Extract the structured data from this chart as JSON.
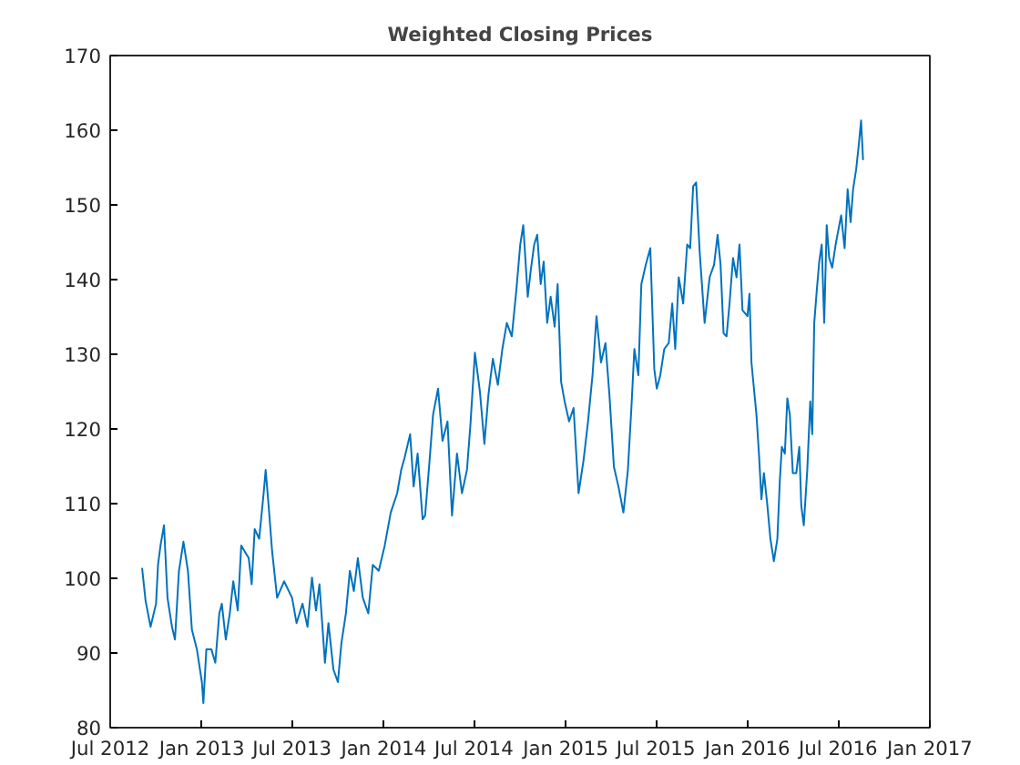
{
  "chart_data": {
    "type": "line",
    "title": "Weighted Closing Prices",
    "x": [
      "2012-09-03",
      "2012-09-10",
      "2012-09-20",
      "2012-10-01",
      "2012-10-05",
      "2012-10-10",
      "2012-10-17",
      "2012-10-24",
      "2012-11-02",
      "2012-11-08",
      "2012-11-16",
      "2012-11-25",
      "2012-12-04",
      "2012-12-12",
      "2012-12-22",
      "2013-01-01",
      "2013-01-04",
      "2013-01-10",
      "2013-01-20",
      "2013-01-28",
      "2013-02-05",
      "2013-02-10",
      "2013-02-18",
      "2013-02-26",
      "2013-03-05",
      "2013-03-14",
      "2013-03-21",
      "2013-03-28",
      "2013-04-05",
      "2013-04-11",
      "2013-04-17",
      "2013-04-26",
      "2013-05-05",
      "2013-05-09",
      "2013-05-15",
      "2013-05-22",
      "2013-06-01",
      "2013-06-15",
      "2013-07-01",
      "2013-07-10",
      "2013-07-22",
      "2013-08-01",
      "2013-08-10",
      "2013-08-18",
      "2013-08-25",
      "2013-09-05",
      "2013-09-12",
      "2013-09-22",
      "2013-10-01",
      "2013-10-08",
      "2013-10-17",
      "2013-10-25",
      "2013-11-02",
      "2013-11-10",
      "2013-11-20",
      "2013-12-01",
      "2013-12-10",
      "2013-12-22",
      "2014-01-03",
      "2014-01-15",
      "2014-01-28",
      "2014-02-05",
      "2014-02-12",
      "2014-02-23",
      "2014-03-02",
      "2014-03-10",
      "2014-03-20",
      "2014-03-25",
      "2014-04-03",
      "2014-04-10",
      "2014-04-20",
      "2014-04-29",
      "2014-05-09",
      "2014-05-18",
      "2014-05-28",
      "2014-06-07",
      "2014-06-17",
      "2014-06-24",
      "2014-07-03",
      "2014-07-13",
      "2014-07-22",
      "2014-07-30",
      "2014-08-08",
      "2014-08-18",
      "2014-08-27",
      "2014-09-05",
      "2014-09-15",
      "2014-09-24",
      "2014-10-02",
      "2014-10-08",
      "2014-10-17",
      "2014-10-23",
      "2014-10-30",
      "2014-11-05",
      "2014-11-12",
      "2014-11-18",
      "2014-11-25",
      "2014-12-02",
      "2014-12-10",
      "2014-12-16",
      "2014-12-23",
      "2014-12-30",
      "2015-01-08",
      "2015-01-17",
      "2015-01-27",
      "2015-02-06",
      "2015-02-15",
      "2015-02-24",
      "2015-03-04",
      "2015-03-13",
      "2015-03-22",
      "2015-03-30",
      "2015-04-08",
      "2015-04-17",
      "2015-04-27",
      "2015-05-06",
      "2015-05-13",
      "2015-05-19",
      "2015-05-27",
      "2015-06-02",
      "2015-06-11",
      "2015-06-20",
      "2015-06-28",
      "2015-07-03",
      "2015-07-10",
      "2015-07-18",
      "2015-07-27",
      "2015-08-03",
      "2015-08-09",
      "2015-08-16",
      "2015-08-25",
      "2015-09-02",
      "2015-09-08",
      "2015-09-14",
      "2015-09-20",
      "2015-09-27",
      "2015-10-07",
      "2015-10-17",
      "2015-10-26",
      "2015-11-02",
      "2015-11-08",
      "2015-11-14",
      "2015-11-20",
      "2015-11-26",
      "2015-12-03",
      "2015-12-10",
      "2015-12-16",
      "2015-12-22",
      "2016-01-01",
      "2016-01-05",
      "2016-01-09",
      "2016-01-14",
      "2016-01-19",
      "2016-01-24",
      "2016-01-29",
      "2016-02-03",
      "2016-02-10",
      "2016-02-16",
      "2016-02-23",
      "2016-03-01",
      "2016-03-06",
      "2016-03-10",
      "2016-03-16",
      "2016-03-21",
      "2016-03-26",
      "2016-04-01",
      "2016-04-08",
      "2016-04-14",
      "2016-04-18",
      "2016-04-23",
      "2016-04-30",
      "2016-05-06",
      "2016-05-10",
      "2016-05-14",
      "2016-05-19",
      "2016-05-24",
      "2016-05-29",
      "2016-06-03",
      "2016-06-08",
      "2016-06-13",
      "2016-06-19",
      "2016-06-26",
      "2016-07-01",
      "2016-07-07",
      "2016-07-14",
      "2016-07-20",
      "2016-07-26",
      "2016-07-31",
      "2016-08-06",
      "2016-08-11",
      "2016-08-16",
      "2016-08-20"
    ],
    "series": [
      {
        "color": "#0072bd",
        "values": [
          101.4,
          97.0,
          93.5,
          96.6,
          101.8,
          104.4,
          107.1,
          97.4,
          93.5,
          91.8,
          101,
          104.9,
          101,
          93.1,
          90.5,
          86.1,
          83.3,
          90.5,
          90.5,
          88.7,
          95.3,
          96.6,
          91.8,
          95.3,
          99.6,
          95.7,
          104.4,
          103.6,
          102.7,
          99.2,
          106.6,
          105.3,
          111.4,
          114.5,
          109.7,
          103.6,
          97.4,
          99.6,
          97.4,
          94,
          96.6,
          93.5,
          100.1,
          95.7,
          99.2,
          88.7,
          94,
          87.8,
          86.1,
          91.3,
          95.3,
          101,
          98.3,
          102.7,
          97.4,
          95.3,
          101.8,
          101,
          104.4,
          108.8,
          111.4,
          114.5,
          116.2,
          119.3,
          112.3,
          116.7,
          107.9,
          108.4,
          115.8,
          121.9,
          125.4,
          118.4,
          121,
          108.4,
          116.7,
          111.4,
          114.5,
          120.6,
          130.2,
          125,
          118,
          124.5,
          129.4,
          125.9,
          130.7,
          134.2,
          132.4,
          138.5,
          144.7,
          147.3,
          137.7,
          141.2,
          144.7,
          146,
          139.4,
          142.4,
          134.2,
          137.7,
          133.7,
          139.4,
          126.3,
          123.7,
          121,
          122.8,
          111.4,
          115.8,
          121,
          127.2,
          135.1,
          128.9,
          131.5,
          124.5,
          114.9,
          112.3,
          108.8,
          114.5,
          122.8,
          130.7,
          127.2,
          139.4,
          142,
          144.2,
          128,
          125.4,
          127.2,
          130.7,
          131.5,
          136.8,
          130.7,
          140.3,
          136.8,
          144.7,
          144.2,
          152.5,
          153,
          143.8,
          134.2,
          140.3,
          142,
          146,
          142,
          132.8,
          132.4,
          136.8,
          142.9,
          140.3,
          144.7,
          135.9,
          135.1,
          138.1,
          128.9,
          125.4,
          121.9,
          116.7,
          110.6,
          114.1,
          109.7,
          105.3,
          102.3,
          105.3,
          113.2,
          117.6,
          116.7,
          124.1,
          121.9,
          114.1,
          114.1,
          117.6,
          109.7,
          107.1,
          114.5,
          123.7,
          119.3,
          134.2,
          138.5,
          142.4,
          144.7,
          134.2,
          147.3,
          142.9,
          141.6,
          144.7,
          146.5,
          148.6,
          144.2,
          152.1,
          147.7,
          152.1,
          154.7,
          157.8,
          161.3,
          156
        ]
      }
    ],
    "xlim": [
      "2012-07-01",
      "2017-01-01"
    ],
    "xticks": [
      {
        "value": "2012-07-01",
        "label": "Jul 2012"
      },
      {
        "value": "2013-01-01",
        "label": "Jan 2013"
      },
      {
        "value": "2013-07-01",
        "label": "Jul 2013"
      },
      {
        "value": "2014-01-01",
        "label": "Jan 2014"
      },
      {
        "value": "2014-07-01",
        "label": "Jul 2014"
      },
      {
        "value": "2015-01-01",
        "label": "Jan 2015"
      },
      {
        "value": "2015-07-01",
        "label": "Jul 2015"
      },
      {
        "value": "2016-01-01",
        "label": "Jan 2016"
      },
      {
        "value": "2016-07-01",
        "label": "Jul 2016"
      },
      {
        "value": "2017-01-01",
        "label": "Jan 2017"
      }
    ],
    "ylim": [
      80,
      170
    ],
    "yticks": [
      80,
      90,
      100,
      110,
      120,
      130,
      140,
      150,
      160,
      170
    ],
    "grid": false,
    "marker": "none",
    "line_style": "solid"
  }
}
